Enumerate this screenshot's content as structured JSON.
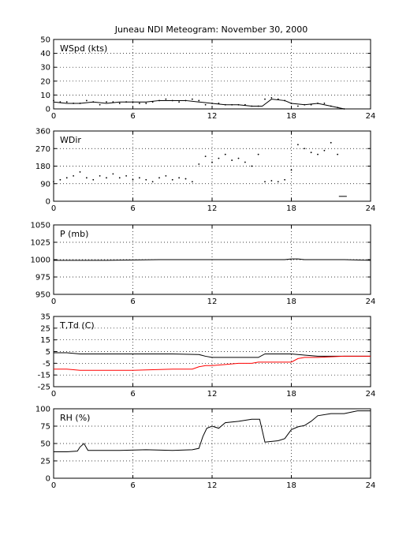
{
  "title": "Juneau NDI Meteogram:  November 30, 2000",
  "colors": {
    "black": "#000000",
    "red": "#ff0000",
    "grid": "#000000"
  },
  "chart_data": [
    {
      "type": "line",
      "label": "WSpd (kts)",
      "xlim": [
        0,
        24
      ],
      "ylim": [
        0,
        50
      ],
      "xticks": [
        0,
        6,
        12,
        18,
        24
      ],
      "yticks": [
        0,
        10,
        20,
        30,
        40,
        50
      ],
      "grid": true,
      "series": [
        {
          "style": "points",
          "color": "#000000",
          "x": [
            0,
            0.5,
            1,
            1.5,
            2,
            2.5,
            3,
            3.5,
            4,
            4.5,
            5,
            5.5,
            6,
            6.5,
            7,
            7.5,
            8,
            8.5,
            9,
            9.5,
            10,
            10.5,
            11,
            11.5,
            12,
            12.5,
            13,
            13.5,
            14,
            14.5,
            15,
            15.5,
            16,
            16.5,
            17,
            17.5,
            18,
            18.5,
            19,
            19.5,
            20,
            20.5,
            21,
            21.5,
            22
          ],
          "y": [
            6,
            5,
            5,
            4,
            4,
            6,
            5,
            3,
            5,
            5,
            4,
            5,
            5,
            4,
            4,
            5,
            6,
            7,
            6,
            5,
            6,
            7,
            6,
            3,
            4,
            4,
            3,
            3,
            3,
            3,
            2,
            2,
            7,
            8,
            7,
            6,
            4,
            2,
            3,
            3,
            4,
            4,
            2,
            1,
            0
          ]
        },
        {
          "style": "line",
          "color": "#000000",
          "x": [
            0,
            1,
            2,
            3,
            4,
            5,
            6,
            7,
            8,
            9,
            10,
            11,
            12,
            13,
            14,
            15,
            15.8,
            16.5,
            17.5,
            18,
            19,
            20,
            21,
            22
          ],
          "y": [
            5,
            4,
            4,
            5,
            4,
            5,
            5,
            5,
            6,
            6,
            6,
            5,
            4,
            3,
            3,
            2,
            2,
            7,
            6,
            4,
            3,
            4,
            2,
            0
          ]
        }
      ]
    },
    {
      "type": "scatter",
      "label": "WDir",
      "xlim": [
        0,
        24
      ],
      "ylim": [
        0,
        360
      ],
      "xticks": [
        0,
        6,
        12,
        18,
        24
      ],
      "yticks": [
        0,
        90,
        180,
        270,
        360
      ],
      "grid": true,
      "series": [
        {
          "style": "points",
          "color": "#000000",
          "x": [
            0,
            0.5,
            1,
            1.5,
            2,
            2.5,
            3,
            3.5,
            4,
            4.5,
            5,
            5.5,
            6,
            6.5,
            7,
            7.5,
            8,
            8.5,
            9,
            9.5,
            10,
            10.5,
            11,
            11.5,
            12,
            12.5,
            13,
            13.5,
            14,
            14.5,
            15,
            15.5,
            16,
            16.5,
            17,
            17.5,
            18,
            18.5,
            19,
            19.5,
            20,
            20.5,
            21,
            21.5
          ],
          "y": [
            100,
            110,
            120,
            130,
            150,
            120,
            110,
            130,
            120,
            140,
            120,
            130,
            110,
            120,
            110,
            100,
            120,
            130,
            110,
            120,
            115,
            100,
            190,
            230,
            200,
            220,
            240,
            210,
            220,
            200,
            180,
            240,
            100,
            105,
            100,
            110,
            160,
            290,
            270,
            250,
            240,
            260,
            300,
            240
          ]
        },
        {
          "style": "segment",
          "color": "#000000",
          "x": [
            21.6,
            22.2
          ],
          "y": [
            25,
            25
          ]
        }
      ]
    },
    {
      "type": "line",
      "label": "P (mb)",
      "xlim": [
        0,
        24
      ],
      "ylim": [
        950,
        1050
      ],
      "xticks": [
        0,
        6,
        12,
        18,
        24
      ],
      "yticks": [
        950,
        975,
        1000,
        1025,
        1050
      ],
      "grid": true,
      "series": [
        {
          "style": "line",
          "color": "#000000",
          "x": [
            0,
            4,
            8,
            12,
            16,
            17.5,
            18,
            18.5,
            19,
            22,
            24
          ],
          "y": [
            999,
            999,
            1000,
            1000,
            1000,
            1000,
            1001,
            1001,
            1000,
            1000,
            999
          ]
        }
      ]
    },
    {
      "type": "line",
      "label": "T,Td (C)",
      "xlim": [
        0,
        24
      ],
      "ylim": [
        -25,
        35
      ],
      "xticks": [
        0,
        6,
        12,
        18,
        24
      ],
      "yticks": [
        -25,
        -15,
        -5,
        5,
        15,
        25,
        35
      ],
      "grid": true,
      "series": [
        {
          "style": "line",
          "color": "#000000",
          "x": [
            0,
            1,
            2,
            3,
            6,
            9,
            11,
            11.5,
            12,
            13,
            14,
            15,
            15.5,
            16,
            17,
            18,
            19,
            20,
            22,
            24
          ],
          "y": [
            4,
            4,
            3,
            3,
            3,
            3,
            2.5,
            1,
            0,
            0,
            0,
            0,
            0,
            3,
            3,
            3,
            2,
            1,
            1,
            1
          ]
        },
        {
          "style": "line",
          "color": "#ff0000",
          "x": [
            0,
            1,
            2,
            3,
            6,
            9,
            10.5,
            11,
            11.5,
            12,
            13,
            14,
            15,
            15.5,
            16,
            17,
            18,
            18.5,
            19,
            20,
            22,
            24
          ],
          "y": [
            -10,
            -10,
            -11,
            -11,
            -11,
            -10,
            -10,
            -8,
            -7,
            -7,
            -6,
            -5,
            -5,
            -4,
            -4,
            -4,
            -4,
            -1,
            0,
            0,
            1,
            1
          ]
        }
      ]
    },
    {
      "type": "line",
      "label": "RH (%)",
      "xlim": [
        0,
        24
      ],
      "ylim": [
        0,
        100
      ],
      "xticks": [
        0,
        6,
        12,
        18,
        24
      ],
      "yticks": [
        0,
        25,
        50,
        75,
        100
      ],
      "grid": true,
      "series": [
        {
          "style": "line",
          "color": "#000000",
          "x": [
            0,
            1,
            1.8,
            2,
            2.3,
            2.6,
            3,
            5,
            7,
            9,
            10.5,
            11,
            11.3,
            11.6,
            12,
            12.5,
            13,
            14,
            15,
            15.6,
            16,
            17,
            17.5,
            18,
            18.5,
            19,
            19.5,
            20,
            21,
            22,
            23,
            24
          ],
          "y": [
            38,
            38,
            39,
            45,
            50,
            40,
            40,
            40,
            41,
            40,
            41,
            43,
            60,
            72,
            75,
            72,
            80,
            82,
            85,
            85,
            52,
            54,
            57,
            70,
            74,
            76,
            82,
            90,
            93,
            93,
            97,
            97
          ]
        }
      ]
    }
  ]
}
